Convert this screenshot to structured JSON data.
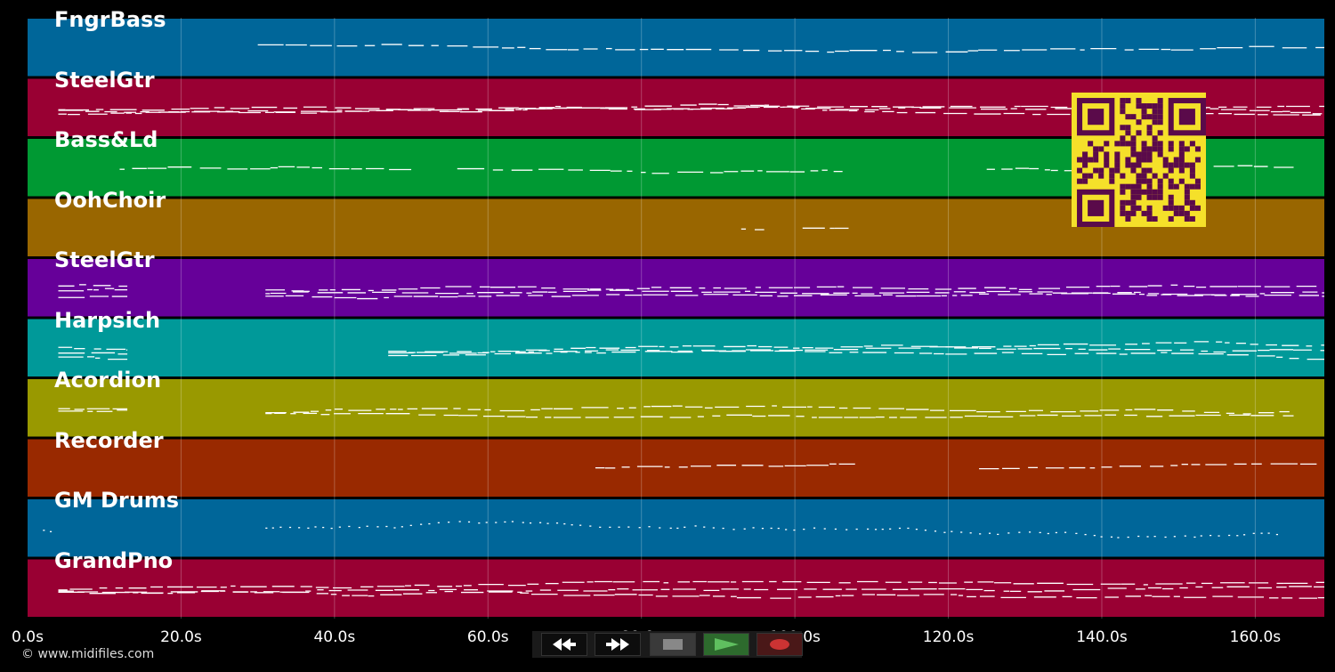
{
  "tracks": [
    {
      "name": "FngrBass",
      "color": "#006699"
    },
    {
      "name": "SteelGtr",
      "color": "#990033"
    },
    {
      "name": "Bass&Ld",
      "color": "#009933"
    },
    {
      "name": "OohChoir",
      "color": "#996600"
    },
    {
      "name": "SteelGtr",
      "color": "#660099"
    },
    {
      "name": "Harpsich",
      "color": "#009999"
    },
    {
      "name": "Acordion",
      "color": "#999900"
    },
    {
      "name": "Recorder",
      "color": "#992900"
    },
    {
      "name": "GM Drums",
      "color": "#006699"
    },
    {
      "name": "GrandPno",
      "color": "#990033"
    }
  ],
  "time_axis": {
    "ticks": [
      "0.0s",
      "20.0s",
      "40.0s",
      "60.0s",
      "80.0s",
      "100.0s",
      "120.0s",
      "140.0s",
      "160.0s"
    ],
    "tick_values": [
      0,
      20,
      40,
      60,
      80,
      100,
      120,
      140,
      160
    ],
    "max_seconds": 169
  },
  "copyright": "© www.midifiles.com",
  "transport": {
    "rewind": "rewind-icon",
    "fast_forward": "fast-forward-icon",
    "stop": "stop-icon",
    "play": "play-icon",
    "record": "record-icon",
    "play_color": "#5fbf5f",
    "record_color": "#cc3333"
  },
  "qr_color": "#f5e02a"
}
